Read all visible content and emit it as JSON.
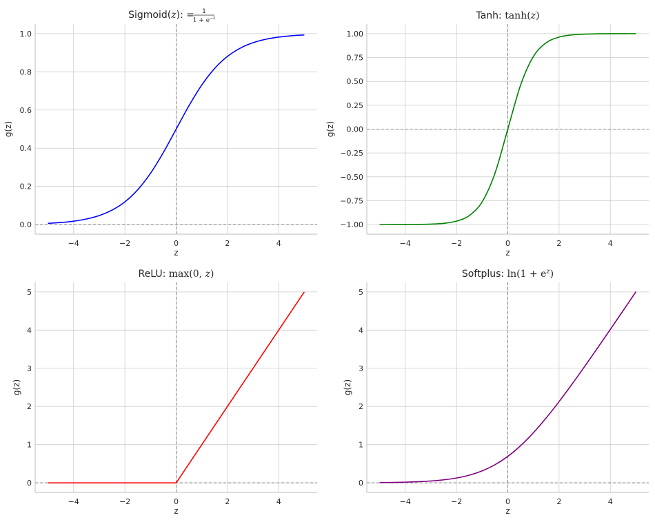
{
  "chart_data": [
    {
      "type": "line",
      "title": {
        "text": "Sigmoid(",
        "math_var": "z",
        "after": "): ",
        "formula": "=",
        "frac_num": "1",
        "frac_den": "1 + e",
        "frac_den_sup": "−z"
      },
      "xlabel": "z",
      "ylabel": "g(z)",
      "xlim": [
        -5.5,
        5.5
      ],
      "ylim": [
        -0.05,
        1.05
      ],
      "xticks": [
        -4,
        -2,
        0,
        2,
        4
      ],
      "xtick_labels": [
        "−4",
        "−2",
        "0",
        "2",
        "4"
      ],
      "yticks": [
        0.0,
        0.2,
        0.4,
        0.6,
        0.8,
        1.0
      ],
      "ytick_labels": [
        "0.0",
        "0.2",
        "0.4",
        "0.6",
        "0.8",
        "1.0"
      ],
      "grid": true,
      "reference_lines": {
        "x": 0,
        "y": 0,
        "style": "dashed",
        "color": "#808080"
      },
      "series": [
        {
          "color": "#0000ff",
          "x": [
            -5,
            -4.5,
            -4,
            -3.5,
            -3,
            -2.5,
            -2,
            -1.5,
            -1,
            -0.5,
            0,
            0.5,
            1,
            1.5,
            2,
            2.5,
            3,
            3.5,
            4,
            4.5,
            5
          ],
          "y": [
            0.0067,
            0.011,
            0.018,
            0.0293,
            0.0474,
            0.0759,
            0.1192,
            0.1824,
            0.2689,
            0.3775,
            0.5,
            0.6225,
            0.7311,
            0.8176,
            0.8808,
            0.9241,
            0.9526,
            0.9707,
            0.982,
            0.989,
            0.9933
          ]
        }
      ]
    },
    {
      "type": "line",
      "title": {
        "text": "Tanh: ",
        "func": "tanh(",
        "math_var": "z",
        "after": ")"
      },
      "xlabel": "z",
      "ylabel": "g(z)",
      "xlim": [
        -5.5,
        5.5
      ],
      "ylim": [
        -1.1,
        1.1
      ],
      "xticks": [
        -4,
        -2,
        0,
        2,
        4
      ],
      "xtick_labels": [
        "−4",
        "−2",
        "0",
        "2",
        "4"
      ],
      "yticks": [
        -1.0,
        -0.75,
        -0.5,
        -0.25,
        0.0,
        0.25,
        0.5,
        0.75,
        1.0
      ],
      "ytick_labels": [
        "−1.00",
        "−0.75",
        "−0.50",
        "−0.25",
        "0.00",
        "0.25",
        "0.50",
        "0.75",
        "1.00"
      ],
      "grid": true,
      "reference_lines": {
        "x": 0,
        "y": 0,
        "style": "dashed",
        "color": "#808080"
      },
      "series": [
        {
          "color": "#008000",
          "x": [
            -5,
            -4.5,
            -4,
            -3.5,
            -3,
            -2.5,
            -2,
            -1.5,
            -1,
            -0.5,
            0,
            0.5,
            1,
            1.5,
            2,
            2.5,
            3,
            3.5,
            4,
            4.5,
            5
          ],
          "y": [
            -0.9999,
            -0.9998,
            -0.9993,
            -0.9982,
            -0.9951,
            -0.9866,
            -0.964,
            -0.9051,
            -0.7616,
            -0.4621,
            0,
            0.4621,
            0.7616,
            0.9051,
            0.964,
            0.9866,
            0.9951,
            0.9982,
            0.9993,
            0.9998,
            0.9999
          ]
        }
      ]
    },
    {
      "type": "line",
      "title": {
        "text": "ReLU: ",
        "func": "max(0, ",
        "math_var": "z",
        "after": ")"
      },
      "xlabel": "z",
      "ylabel": "g(z)",
      "xlim": [
        -5.5,
        5.5
      ],
      "ylim": [
        -0.25,
        5.25
      ],
      "xticks": [
        -4,
        -2,
        0,
        2,
        4
      ],
      "xtick_labels": [
        "−4",
        "−2",
        "0",
        "2",
        "4"
      ],
      "yticks": [
        0,
        1,
        2,
        3,
        4,
        5
      ],
      "ytick_labels": [
        "0",
        "1",
        "2",
        "3",
        "4",
        "5"
      ],
      "grid": true,
      "reference_lines": {
        "x": 0,
        "y": 0,
        "style": "dashed",
        "color": "#808080"
      },
      "series": [
        {
          "color": "#ff0000",
          "x": [
            -5,
            0,
            5
          ],
          "y": [
            0,
            0,
            5
          ]
        }
      ]
    },
    {
      "type": "line",
      "title": {
        "text": "Softplus: ",
        "func": "ln(1 + e",
        "sup": "z",
        "after": ")"
      },
      "xlabel": "z",
      "ylabel": "g(z)",
      "xlim": [
        -5.5,
        5.5
      ],
      "ylim": [
        -0.25,
        5.25
      ],
      "xticks": [
        -4,
        -2,
        0,
        2,
        4
      ],
      "xtick_labels": [
        "−4",
        "−2",
        "0",
        "2",
        "4"
      ],
      "yticks": [
        0,
        1,
        2,
        3,
        4,
        5
      ],
      "ytick_labels": [
        "0",
        "1",
        "2",
        "3",
        "4",
        "5"
      ],
      "grid": true,
      "reference_lines": {
        "x": 0,
        "y": 0,
        "style": "dashed",
        "color": "#808080"
      },
      "series": [
        {
          "color": "#800080",
          "x": [
            -5,
            -4.5,
            -4,
            -3.5,
            -3,
            -2.5,
            -2,
            -1.5,
            -1,
            -0.5,
            0,
            0.5,
            1,
            1.5,
            2,
            2.5,
            3,
            3.5,
            4,
            4.5,
            5
          ],
          "y": [
            0.0067,
            0.0111,
            0.0181,
            0.0298,
            0.0486,
            0.0789,
            0.1269,
            0.2014,
            0.3133,
            0.4741,
            0.6931,
            0.9741,
            1.3133,
            1.7014,
            2.1269,
            2.5789,
            3.0486,
            3.5298,
            4.0181,
            4.5111,
            5.0067
          ]
        }
      ]
    }
  ]
}
